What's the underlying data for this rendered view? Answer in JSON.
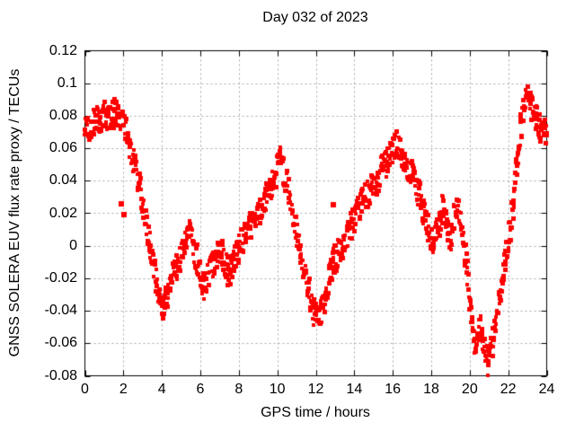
{
  "chart_data": {
    "type": "scatter",
    "title": "Day 032 of 2023",
    "xlabel": "GPS time / hours",
    "ylabel": "GNSS SOLERA EUV flux rate proxy / TECUs",
    "xlim": [
      0,
      24
    ],
    "ylim": [
      -0.08,
      0.12
    ],
    "xtick_values": [
      0,
      2,
      4,
      6,
      8,
      10,
      12,
      14,
      16,
      18,
      20,
      22,
      24
    ],
    "xtick_labels": [
      "0",
      "2",
      "4",
      "6",
      "8",
      "10",
      "12",
      "14",
      "16",
      "18",
      "20",
      "22",
      "24"
    ],
    "ytick_values": [
      -0.08,
      -0.06,
      -0.04,
      -0.02,
      0,
      0.02,
      0.04,
      0.06,
      0.08,
      0.1,
      0.12
    ],
    "ytick_labels": [
      "-0.08",
      "-0.06",
      "-0.04",
      "-0.02",
      "0",
      "0.02",
      "0.04",
      "0.06",
      "0.08",
      "0.1",
      "0.12"
    ],
    "grid": true,
    "legend": false,
    "marker": "square",
    "color": "#ff0000",
    "band_halfwidth": 0.009,
    "colors": {
      "background": "#ffffff",
      "text": "#000000",
      "grid": "#a6a6a6",
      "border": "#000000",
      "series": "#ff0000"
    },
    "series": [
      {
        "name": "EUV flux rate proxy",
        "points": [
          [
            0.0,
            0.07
          ],
          [
            0.2,
            0.073
          ],
          [
            0.5,
            0.076
          ],
          [
            0.8,
            0.079
          ],
          [
            1.1,
            0.08
          ],
          [
            1.4,
            0.082
          ],
          [
            1.7,
            0.081
          ],
          [
            2.0,
            0.078
          ],
          [
            2.3,
            0.062
          ],
          [
            2.6,
            0.048
          ],
          [
            2.9,
            0.032
          ],
          [
            3.2,
            0.012
          ],
          [
            3.5,
            -0.008
          ],
          [
            3.8,
            -0.028
          ],
          [
            4.05,
            -0.038
          ],
          [
            4.3,
            -0.028
          ],
          [
            4.6,
            -0.018
          ],
          [
            4.9,
            -0.007
          ],
          [
            5.2,
            0.004
          ],
          [
            5.45,
            0.007
          ],
          [
            5.7,
            -0.004
          ],
          [
            6.0,
            -0.018
          ],
          [
            6.2,
            -0.026
          ],
          [
            6.5,
            -0.016
          ],
          [
            6.8,
            -0.005
          ],
          [
            7.1,
            -0.003
          ],
          [
            7.4,
            -0.016
          ],
          [
            7.6,
            -0.014
          ],
          [
            7.9,
            -0.002
          ],
          [
            8.2,
            0.004
          ],
          [
            8.5,
            0.01
          ],
          [
            8.8,
            0.016
          ],
          [
            9.1,
            0.022
          ],
          [
            9.4,
            0.03
          ],
          [
            9.7,
            0.038
          ],
          [
            10.0,
            0.048
          ],
          [
            10.15,
            0.052
          ],
          [
            10.4,
            0.042
          ],
          [
            10.7,
            0.026
          ],
          [
            11.0,
            0.008
          ],
          [
            11.3,
            -0.008
          ],
          [
            11.6,
            -0.026
          ],
          [
            11.9,
            -0.04
          ],
          [
            12.1,
            -0.044
          ],
          [
            12.35,
            -0.038
          ],
          [
            12.6,
            -0.024
          ],
          [
            12.9,
            -0.01
          ],
          [
            13.2,
            -0.002
          ],
          [
            13.5,
            0.003
          ],
          [
            13.8,
            0.012
          ],
          [
            14.1,
            0.022
          ],
          [
            14.4,
            0.027
          ],
          [
            14.7,
            0.031
          ],
          [
            15.0,
            0.038
          ],
          [
            15.3,
            0.044
          ],
          [
            15.6,
            0.05
          ],
          [
            15.9,
            0.058
          ],
          [
            16.15,
            0.064
          ],
          [
            16.4,
            0.057
          ],
          [
            16.7,
            0.049
          ],
          [
            17.0,
            0.044
          ],
          [
            17.3,
            0.034
          ],
          [
            17.6,
            0.02
          ],
          [
            17.9,
            0.008
          ],
          [
            18.1,
            0.002
          ],
          [
            18.35,
            0.012
          ],
          [
            18.6,
            0.025
          ],
          [
            18.85,
            0.012
          ],
          [
            19.0,
            0.002
          ],
          [
            19.2,
            0.022
          ],
          [
            19.4,
            0.026
          ],
          [
            19.6,
            0.01
          ],
          [
            19.8,
            -0.012
          ],
          [
            20.0,
            -0.035
          ],
          [
            20.25,
            -0.058
          ],
          [
            20.5,
            -0.048
          ],
          [
            20.7,
            -0.06
          ],
          [
            20.95,
            -0.072
          ],
          [
            21.1,
            -0.065
          ],
          [
            21.35,
            -0.045
          ],
          [
            21.6,
            -0.026
          ],
          [
            21.85,
            -0.008
          ],
          [
            22.1,
            0.012
          ],
          [
            22.35,
            0.04
          ],
          [
            22.6,
            0.068
          ],
          [
            22.8,
            0.088
          ],
          [
            23.0,
            0.093
          ],
          [
            23.2,
            0.086
          ],
          [
            23.45,
            0.078
          ],
          [
            23.7,
            0.072
          ],
          [
            23.9,
            0.07
          ],
          [
            24.0,
            0.071
          ]
        ]
      }
    ],
    "outliers": [
      [
        1.88,
        0.026
      ],
      [
        2.02,
        0.019
      ],
      [
        12.9,
        0.025
      ]
    ]
  }
}
